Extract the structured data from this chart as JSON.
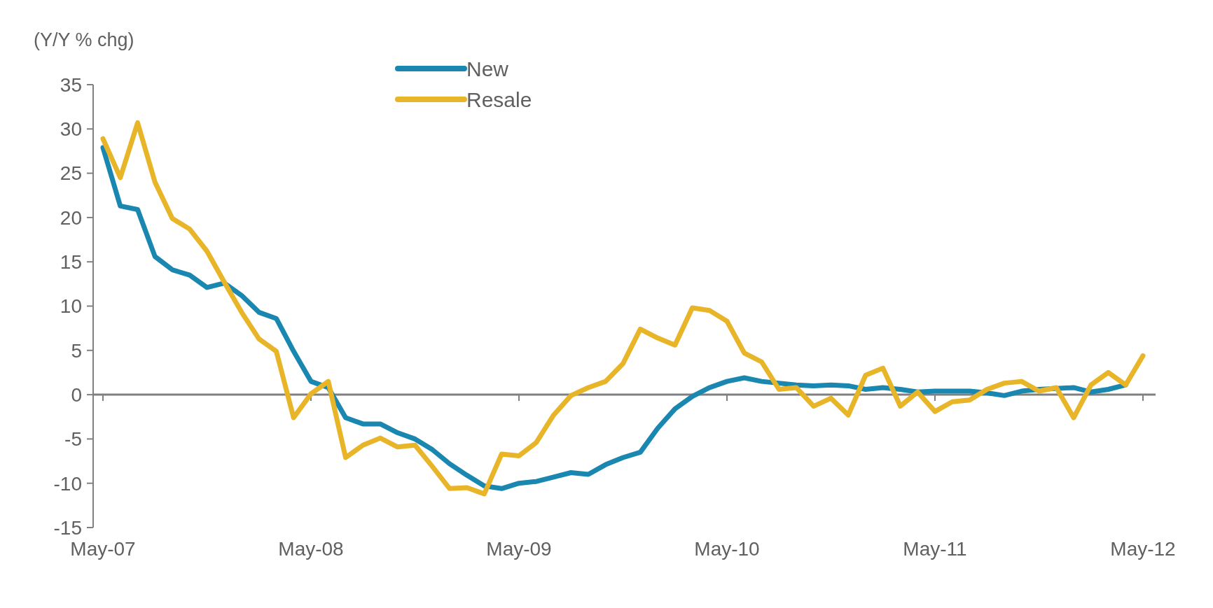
{
  "chart_data": {
    "type": "line",
    "ylabel": "(Y/Y % chg)",
    "categories": [
      "May-07",
      null,
      null,
      null,
      null,
      null,
      null,
      null,
      null,
      null,
      null,
      null,
      "May-08",
      null,
      null,
      null,
      null,
      null,
      null,
      null,
      null,
      null,
      null,
      null,
      "May-09",
      null,
      null,
      null,
      null,
      null,
      null,
      null,
      null,
      null,
      null,
      null,
      "May-10",
      null,
      null,
      null,
      null,
      null,
      null,
      null,
      null,
      null,
      null,
      null,
      "May-11",
      null,
      null,
      null,
      null,
      null,
      null,
      null,
      null,
      null,
      null,
      null,
      "May-12"
    ],
    "series": [
      {
        "name": "New",
        "color": "#1a87b0",
        "values": [
          27.9,
          21.3,
          20.9,
          15.6,
          14.1,
          13.5,
          12.1,
          12.6,
          11.2,
          9.3,
          8.6,
          4.9,
          1.5,
          0.8,
          -2.6,
          -3.3,
          -3.3,
          -4.3,
          -5.0,
          -6.2,
          -7.8,
          -9.1,
          -10.3,
          -10.6,
          -10.0,
          -9.8,
          -9.3,
          -8.8,
          -9.0,
          -7.9,
          -7.1,
          -6.5,
          -3.8,
          -1.6,
          -0.2,
          0.8,
          1.5,
          1.9,
          1.5,
          1.3,
          1.1,
          1.0,
          1.1,
          1.0,
          0.6,
          0.8,
          0.6,
          0.3,
          0.4,
          0.4,
          0.4,
          0.2,
          -0.1,
          0.4,
          0.6,
          0.7,
          0.8,
          0.3,
          0.6,
          1.1,
          null
        ]
      },
      {
        "name": "Resale",
        "color": "#e8b428",
        "values": [
          28.9,
          24.5,
          30.7,
          24.0,
          19.9,
          18.7,
          16.2,
          12.7,
          9.3,
          6.3,
          4.9,
          -2.6,
          0.1,
          1.5,
          -7.1,
          -5.7,
          -4.9,
          -5.9,
          -5.7,
          -8.1,
          -10.6,
          -10.5,
          -11.2,
          -6.7,
          -6.9,
          -5.4,
          -2.3,
          -0.1,
          0.8,
          1.5,
          3.5,
          7.4,
          6.4,
          5.6,
          9.8,
          9.5,
          8.3,
          4.7,
          3.7,
          0.6,
          0.8,
          -1.3,
          -0.4,
          -2.3,
          2.2,
          3.0,
          -1.3,
          0.3,
          -1.9,
          -0.8,
          -0.6,
          0.6,
          1.3,
          1.5,
          0.4,
          0.8,
          -2.6,
          1.1,
          2.5,
          1.1,
          4.4
        ]
      }
    ],
    "ylim": [
      -15,
      35
    ],
    "yticks": [
      -15,
      -10,
      -5,
      0,
      5,
      10,
      15,
      20,
      25,
      30,
      35
    ],
    "legend": "top"
  }
}
